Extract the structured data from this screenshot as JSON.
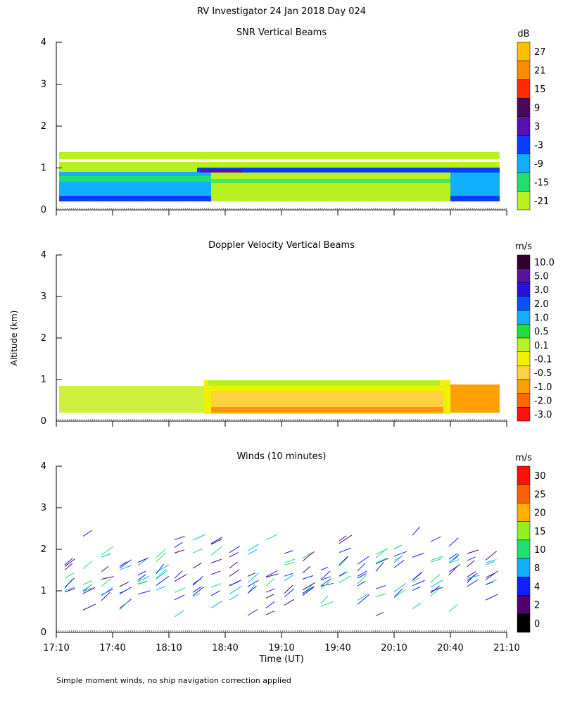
{
  "title": "RV Investigator  24 Jan 2018 Day 024",
  "y_label": "Altitude (km)",
  "footnote": "Simple moment winds, no ship navigation correction applied",
  "chart_data": [
    {
      "type": "heatmap",
      "title": "SNR Vertical Beams",
      "ylim": [
        0,
        4
      ],
      "yticks": [
        0,
        1,
        2,
        3,
        4
      ],
      "colorbar": {
        "unit": "dB",
        "ticks": [
          27,
          21,
          15,
          9,
          3,
          -3,
          -9,
          -15,
          -21
        ],
        "colors": [
          "#ffc000",
          "#ff8a00",
          "#ff2a00",
          "#4a0a5a",
          "#5a10b0",
          "#0a3cff",
          "#10b0ff",
          "#20e070",
          "#b8f020"
        ]
      }
    },
    {
      "type": "heatmap",
      "title": "Doppler Velocity Vertical Beams",
      "ylim": [
        0,
        4
      ],
      "yticks": [
        0,
        1,
        2,
        3,
        4
      ],
      "colorbar": {
        "unit": "m/s",
        "ticks": [
          {
            "value": 10,
            "label": "10.0"
          },
          {
            "value": 5,
            "label": "5.0"
          },
          {
            "value": 3,
            "label": "3.0"
          },
          {
            "value": 2,
            "label": "2.0"
          },
          {
            "value": 1,
            "label": "1.0"
          },
          0.5,
          0.1,
          -0.1,
          -0.5,
          {
            "value": -1,
            "label": "-1.0"
          },
          {
            "value": -2,
            "label": "-2.0"
          },
          {
            "value": -3,
            "label": "-3.0"
          }
        ],
        "colors": [
          "#300030",
          "#5a10a0",
          "#2a10e0",
          "#0a50ff",
          "#10b0ff",
          "#20e040",
          "#b8f020",
          "#f0f000",
          "#ffd040",
          "#ffa000",
          "#ff6a00",
          "#ff1010"
        ]
      }
    },
    {
      "type": "barbs",
      "title": "Winds (10 minutes)",
      "ylim": [
        0,
        4
      ],
      "yticks": [
        0,
        1,
        2,
        3,
        4
      ],
      "categories": [
        "17:10",
        "17:40",
        "18:10",
        "18:40",
        "19:10",
        "19:40",
        "20:10",
        "20:40",
        "21:10"
      ],
      "xlabel": "Time (UT)",
      "colorbar": {
        "unit": "m/s",
        "ticks": [
          30,
          25,
          20,
          15,
          10,
          8,
          4,
          2,
          0
        ],
        "colors": [
          "#ff1000",
          "#ff6000",
          "#ffb000",
          "#90f020",
          "#20e070",
          "#10b0ff",
          "#1020ff",
          "#500070",
          "#000000"
        ]
      }
    }
  ]
}
